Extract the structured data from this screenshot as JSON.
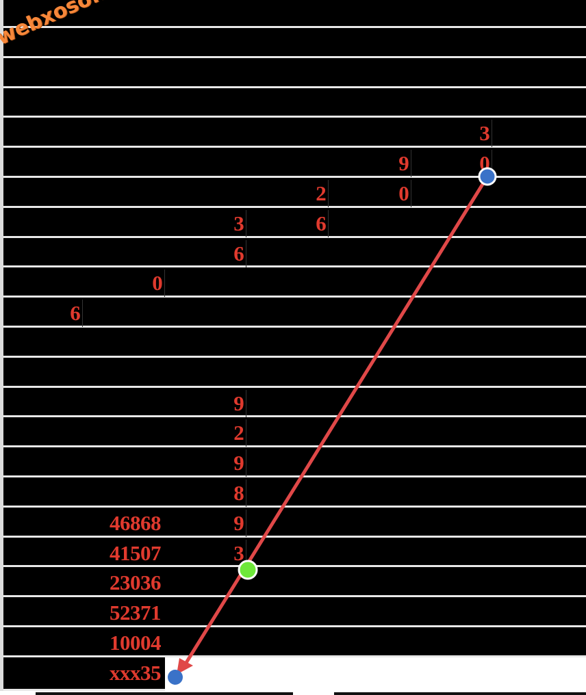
{
  "watermark": "webxoso.net",
  "colors": {
    "digit": "#e03a2e",
    "arrow": "#e04848",
    "start_dot": "#3a72c8",
    "mid_dot": "#6ee83a",
    "end_dot": "#3a72c8",
    "watermark": "#f6873a"
  },
  "rows": [
    {
      "num": "",
      "d": [
        "",
        "",
        "",
        "",
        "",
        ""
      ]
    },
    {
      "num": "",
      "d": [
        "",
        "",
        "",
        "",
        "",
        ""
      ]
    },
    {
      "num": "",
      "d": [
        "",
        "",
        "",
        "",
        "",
        ""
      ]
    },
    {
      "num": "",
      "d": [
        "",
        "",
        "",
        "",
        "",
        ""
      ]
    },
    {
      "num": "",
      "d": [
        "",
        "",
        "",
        "",
        "",
        "3"
      ]
    },
    {
      "num": "",
      "d": [
        "",
        "",
        "",
        "",
        "9",
        "0"
      ]
    },
    {
      "num": "",
      "d": [
        "",
        "",
        "",
        "2",
        "0",
        ""
      ]
    },
    {
      "num": "",
      "d": [
        "",
        "",
        "3",
        "6",
        "",
        ""
      ]
    },
    {
      "num": "",
      "d": [
        "",
        "",
        "6",
        "",
        "",
        ""
      ]
    },
    {
      "num": "",
      "d": [
        "",
        "0",
        "",
        "",
        "",
        ""
      ]
    },
    {
      "num": "",
      "d": [
        "6",
        "",
        "",
        "",
        "",
        ""
      ]
    },
    {
      "num": "",
      "d": [
        "",
        "",
        "",
        "",
        "",
        ""
      ]
    },
    {
      "num": "",
      "d": [
        "",
        "",
        "",
        "",
        "",
        ""
      ]
    },
    {
      "num": "",
      "d": [
        "",
        "",
        "9",
        "",
        "",
        ""
      ]
    },
    {
      "num": "",
      "d": [
        "",
        "",
        "2",
        "",
        "",
        ""
      ]
    },
    {
      "num": "",
      "d": [
        "",
        "",
        "9",
        "",
        "",
        ""
      ]
    },
    {
      "num": "",
      "d": [
        "",
        "",
        "8",
        "",
        "",
        ""
      ]
    },
    {
      "num": "46868",
      "d": [
        "",
        "",
        "9",
        "",
        "",
        ""
      ]
    },
    {
      "num": "41507",
      "d": [
        "",
        "",
        "3",
        "",
        "",
        ""
      ]
    },
    {
      "num": "23036",
      "d": [
        "",
        "",
        "",
        "",
        "",
        ""
      ]
    },
    {
      "num": "52371",
      "d": [
        "",
        "",
        "",
        "",
        "",
        ""
      ]
    },
    {
      "num": "10004",
      "d": [
        "",
        "",
        "",
        "",
        "",
        ""
      ]
    },
    {
      "num": "xxx35",
      "d": [
        "",
        "",
        "",
        "",
        "",
        ""
      ]
    }
  ]
}
